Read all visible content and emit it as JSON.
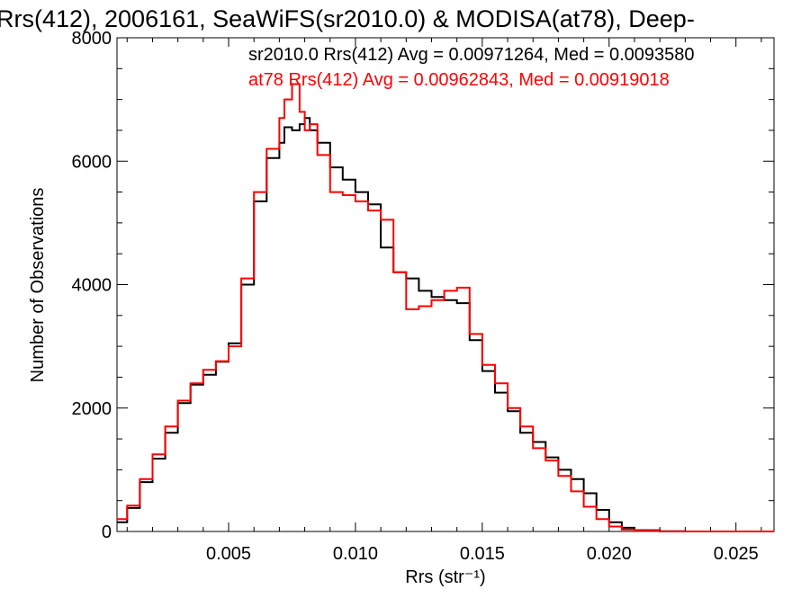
{
  "chart_data": {
    "type": "line",
    "title": "Rrs(412), 2006161, SeaWiFS(sr2010.0) & MODISA(at78), Deep-",
    "xlabel": "Rrs (str⁻¹)",
    "ylabel": "Number of Observations",
    "xlim": [
      0.0006,
      0.0265
    ],
    "ylim": [
      0,
      8000
    ],
    "x_ticks": [
      0.005,
      0.01,
      0.015,
      0.02,
      0.025
    ],
    "x_tick_labels": [
      "0.005",
      "0.010",
      "0.015",
      "0.020",
      "0.025"
    ],
    "y_ticks": [
      0,
      2000,
      4000,
      6000,
      8000
    ],
    "y_tick_labels": [
      "0",
      "2000",
      "4000",
      "6000",
      "8000"
    ],
    "step": true,
    "series": [
      {
        "name": "sr2010.0",
        "color": "#000000",
        "annotation": "sr2010.0 Rrs(412) Avg = 0.00971264, Med = 0.0093580",
        "x": [
          0.0006,
          0.001,
          0.0015,
          0.002,
          0.0025,
          0.003,
          0.0035,
          0.004,
          0.0045,
          0.005,
          0.0055,
          0.006,
          0.0065,
          0.007,
          0.0072,
          0.0075,
          0.0078,
          0.008,
          0.0082,
          0.0085,
          0.009,
          0.0095,
          0.01,
          0.0105,
          0.011,
          0.0115,
          0.012,
          0.0125,
          0.013,
          0.0135,
          0.014,
          0.0145,
          0.015,
          0.0155,
          0.016,
          0.0165,
          0.017,
          0.0175,
          0.018,
          0.0185,
          0.019,
          0.0195,
          0.02,
          0.0205,
          0.021,
          0.022,
          0.023,
          0.024,
          0.025,
          0.0265
        ],
        "y": [
          150,
          380,
          800,
          1180,
          1600,
          2080,
          2380,
          2540,
          2750,
          3050,
          4000,
          5350,
          6050,
          6300,
          6550,
          6500,
          6600,
          6700,
          6500,
          6300,
          5900,
          5700,
          5500,
          5300,
          4600,
          4200,
          4100,
          3900,
          3800,
          3750,
          3700,
          3100,
          2600,
          2250,
          1950,
          1600,
          1450,
          1200,
          1000,
          850,
          620,
          350,
          150,
          60,
          20,
          5,
          0,
          0,
          0,
          0
        ]
      },
      {
        "name": "at78",
        "color": "#ff0000",
        "annotation": "at78 Rrs(412) Avg = 0.00962843, Med = 0.00919018",
        "x": [
          0.0006,
          0.001,
          0.0015,
          0.002,
          0.0025,
          0.003,
          0.0035,
          0.004,
          0.0045,
          0.005,
          0.0055,
          0.006,
          0.0065,
          0.007,
          0.0072,
          0.0075,
          0.0078,
          0.008,
          0.0082,
          0.0085,
          0.009,
          0.0095,
          0.01,
          0.0105,
          0.011,
          0.0115,
          0.012,
          0.0125,
          0.013,
          0.0135,
          0.014,
          0.0145,
          0.015,
          0.0155,
          0.016,
          0.0165,
          0.017,
          0.0175,
          0.018,
          0.0185,
          0.019,
          0.0195,
          0.02,
          0.0205,
          0.021,
          0.022,
          0.023,
          0.024,
          0.025,
          0.0265
        ],
        "y": [
          200,
          420,
          850,
          1250,
          1700,
          2120,
          2400,
          2620,
          2760,
          3000,
          4100,
          5500,
          6200,
          6700,
          7000,
          7250,
          6800,
          6500,
          6600,
          6100,
          5500,
          5450,
          5350,
          5200,
          5050,
          4200,
          3600,
          3650,
          3750,
          3900,
          3950,
          3200,
          2700,
          2400,
          2000,
          1700,
          1350,
          1150,
          900,
          650,
          400,
          200,
          80,
          30,
          10,
          0,
          0,
          0,
          0,
          0
        ]
      }
    ]
  }
}
